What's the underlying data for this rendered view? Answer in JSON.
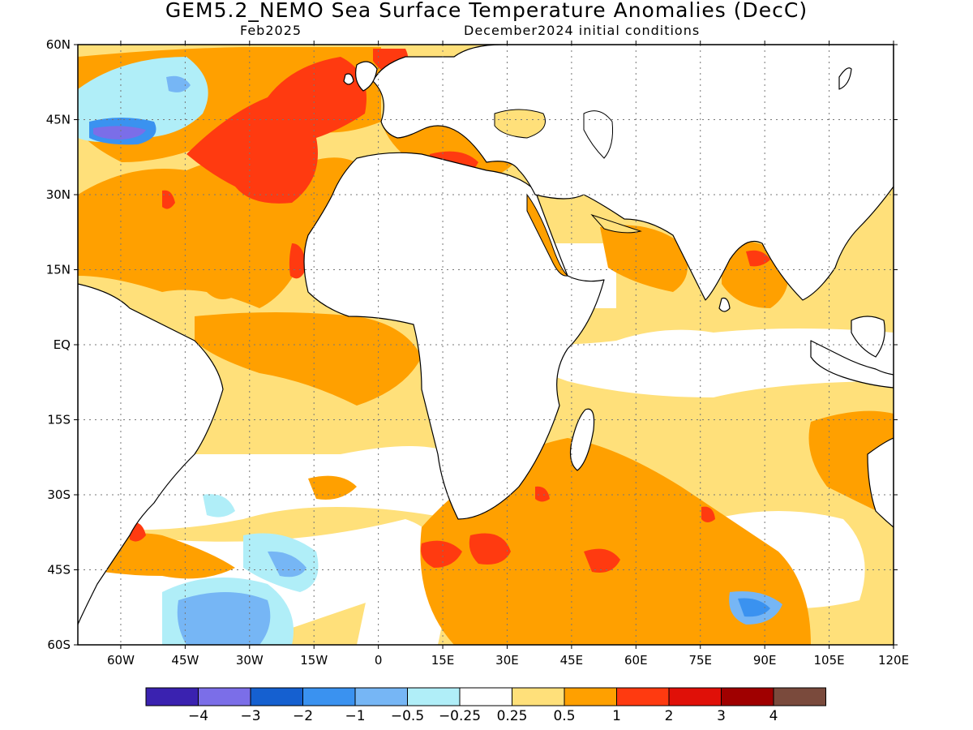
{
  "title": "GEM5.2_NEMO Sea Surface Temperature Anomalies (DecC)",
  "subtitle_left": "Feb2025",
  "subtitle_right": "December2024 initial conditions",
  "map": {
    "lon_range": [
      -70,
      120
    ],
    "lat_range": [
      -60,
      60
    ],
    "gridlines": true,
    "lat_ticks": [
      {
        "value": 60,
        "label": "60N"
      },
      {
        "value": 45,
        "label": "45N"
      },
      {
        "value": 30,
        "label": "30N"
      },
      {
        "value": 15,
        "label": "15N"
      },
      {
        "value": 0,
        "label": "EQ"
      },
      {
        "value": -15,
        "label": "15S"
      },
      {
        "value": -30,
        "label": "30S"
      },
      {
        "value": -45,
        "label": "45S"
      },
      {
        "value": -60,
        "label": "60S"
      }
    ],
    "lon_ticks": [
      {
        "value": -60,
        "label": "60W"
      },
      {
        "value": -45,
        "label": "45W"
      },
      {
        "value": -30,
        "label": "30W"
      },
      {
        "value": -15,
        "label": "15W"
      },
      {
        "value": 0,
        "label": "0"
      },
      {
        "value": 15,
        "label": "15E"
      },
      {
        "value": 30,
        "label": "30E"
      },
      {
        "value": 45,
        "label": "45E"
      },
      {
        "value": 60,
        "label": "60E"
      },
      {
        "value": 75,
        "label": "75E"
      },
      {
        "value": 90,
        "label": "90E"
      },
      {
        "value": 105,
        "label": "105E"
      },
      {
        "value": 120,
        "label": "120E"
      }
    ]
  },
  "colorbar": {
    "colors": [
      "#3a22b0",
      "#7b6ee8",
      "#1560d0",
      "#3a92f0",
      "#76b6f5",
      "#b0eef8",
      "#ffffff",
      "#ffe07a",
      "#ffa000",
      "#ff3a10",
      "#e01008",
      "#a00000",
      "#7a4a3c"
    ],
    "labels": [
      "−4",
      "−3",
      "−2",
      "−1",
      "−0.5",
      "−0.25",
      "0.25",
      "0.5",
      "1",
      "2",
      "3",
      "4"
    ]
  }
}
